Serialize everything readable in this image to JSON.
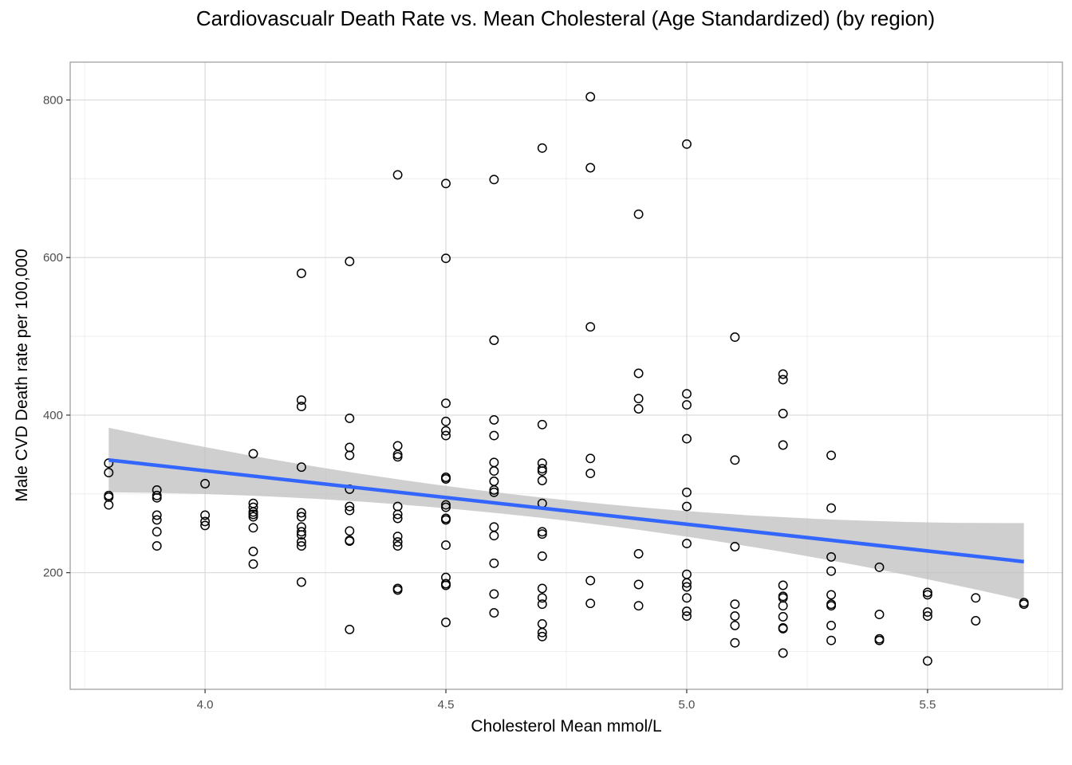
{
  "chart_data": {
    "type": "scatter",
    "title": "Cardiovascualr Death Rate vs. Mean Cholesteral (Age Standardized) (by region)",
    "xlabel": "Cholesterol Mean mmol/L",
    "ylabel": "Male CVD Death rate per 100,000",
    "xlim": [
      3.72,
      5.78
    ],
    "ylim": [
      52,
      848
    ],
    "x_ticks": [
      4.0,
      4.5,
      5.0,
      5.5
    ],
    "x_tick_labels": [
      "4.0",
      "4.5",
      "5.0",
      "5.5"
    ],
    "y_ticks": [
      200,
      400,
      600,
      800
    ],
    "y_tick_labels": [
      "200",
      "400",
      "600",
      "800"
    ],
    "grid": true,
    "legend": "none",
    "colors": {
      "points": "#000000",
      "trend_line": "#3366ff",
      "confidence_band": "#bfbfbf",
      "grid": "#d9d9d9",
      "panel_border": "#999999"
    },
    "points": [
      [
        3.8,
        339
      ],
      [
        3.8,
        327
      ],
      [
        3.8,
        298
      ],
      [
        3.8,
        296
      ],
      [
        3.8,
        286
      ],
      [
        3.9,
        305
      ],
      [
        3.9,
        298
      ],
      [
        3.9,
        295
      ],
      [
        3.9,
        273
      ],
      [
        3.9,
        267
      ],
      [
        3.9,
        252
      ],
      [
        3.9,
        234
      ],
      [
        4.0,
        313
      ],
      [
        4.0,
        273
      ],
      [
        4.0,
        265
      ],
      [
        4.0,
        260
      ],
      [
        4.1,
        351
      ],
      [
        4.1,
        288
      ],
      [
        4.1,
        283
      ],
      [
        4.1,
        277
      ],
      [
        4.1,
        274
      ],
      [
        4.1,
        271
      ],
      [
        4.1,
        257
      ],
      [
        4.1,
        227
      ],
      [
        4.1,
        211
      ],
      [
        4.2,
        580
      ],
      [
        4.2,
        419
      ],
      [
        4.2,
        411
      ],
      [
        4.2,
        334
      ],
      [
        4.2,
        276
      ],
      [
        4.2,
        271
      ],
      [
        4.2,
        258
      ],
      [
        4.2,
        252
      ],
      [
        4.2,
        248
      ],
      [
        4.2,
        239
      ],
      [
        4.2,
        234
      ],
      [
        4.2,
        188
      ],
      [
        4.3,
        595
      ],
      [
        4.3,
        396
      ],
      [
        4.3,
        359
      ],
      [
        4.3,
        349
      ],
      [
        4.3,
        306
      ],
      [
        4.3,
        284
      ],
      [
        4.3,
        279
      ],
      [
        4.3,
        253
      ],
      [
        4.3,
        241
      ],
      [
        4.3,
        240
      ],
      [
        4.3,
        128
      ],
      [
        4.4,
        705
      ],
      [
        4.4,
        361
      ],
      [
        4.4,
        350
      ],
      [
        4.4,
        347
      ],
      [
        4.4,
        284
      ],
      [
        4.4,
        274
      ],
      [
        4.4,
        269
      ],
      [
        4.4,
        246
      ],
      [
        4.4,
        239
      ],
      [
        4.4,
        234
      ],
      [
        4.4,
        180
      ],
      [
        4.4,
        178
      ],
      [
        4.5,
        694
      ],
      [
        4.5,
        599
      ],
      [
        4.5,
        415
      ],
      [
        4.5,
        392
      ],
      [
        4.5,
        380
      ],
      [
        4.5,
        374
      ],
      [
        4.5,
        321
      ],
      [
        4.5,
        319
      ],
      [
        4.5,
        286
      ],
      [
        4.5,
        283
      ],
      [
        4.5,
        269
      ],
      [
        4.5,
        267
      ],
      [
        4.5,
        235
      ],
      [
        4.5,
        194
      ],
      [
        4.5,
        186
      ],
      [
        4.5,
        184
      ],
      [
        4.5,
        137
      ],
      [
        4.6,
        699
      ],
      [
        4.6,
        495
      ],
      [
        4.6,
        394
      ],
      [
        4.6,
        374
      ],
      [
        4.6,
        340
      ],
      [
        4.6,
        329
      ],
      [
        4.6,
        316
      ],
      [
        4.6,
        305
      ],
      [
        4.6,
        302
      ],
      [
        4.6,
        258
      ],
      [
        4.6,
        247
      ],
      [
        4.6,
        212
      ],
      [
        4.6,
        173
      ],
      [
        4.6,
        149
      ],
      [
        4.7,
        739
      ],
      [
        4.7,
        388
      ],
      [
        4.7,
        339
      ],
      [
        4.7,
        332
      ],
      [
        4.7,
        329
      ],
      [
        4.7,
        317
      ],
      [
        4.7,
        288
      ],
      [
        4.7,
        252
      ],
      [
        4.7,
        249
      ],
      [
        4.7,
        221
      ],
      [
        4.7,
        180
      ],
      [
        4.7,
        168
      ],
      [
        4.7,
        160
      ],
      [
        4.7,
        135
      ],
      [
        4.7,
        124
      ],
      [
        4.7,
        119
      ],
      [
        4.8,
        804
      ],
      [
        4.8,
        714
      ],
      [
        4.8,
        512
      ],
      [
        4.8,
        345
      ],
      [
        4.8,
        326
      ],
      [
        4.8,
        190
      ],
      [
        4.8,
        161
      ],
      [
        4.9,
        655
      ],
      [
        4.9,
        453
      ],
      [
        4.9,
        421
      ],
      [
        4.9,
        408
      ],
      [
        4.9,
        224
      ],
      [
        4.9,
        185
      ],
      [
        4.9,
        158
      ],
      [
        5.0,
        744
      ],
      [
        5.0,
        427
      ],
      [
        5.0,
        413
      ],
      [
        5.0,
        370
      ],
      [
        5.0,
        302
      ],
      [
        5.0,
        284
      ],
      [
        5.0,
        237
      ],
      [
        5.0,
        198
      ],
      [
        5.0,
        187
      ],
      [
        5.0,
        182
      ],
      [
        5.0,
        168
      ],
      [
        5.0,
        151
      ],
      [
        5.0,
        145
      ],
      [
        5.1,
        499
      ],
      [
        5.1,
        343
      ],
      [
        5.1,
        233
      ],
      [
        5.1,
        160
      ],
      [
        5.1,
        145
      ],
      [
        5.1,
        133
      ],
      [
        5.1,
        111
      ],
      [
        5.2,
        452
      ],
      [
        5.2,
        445
      ],
      [
        5.2,
        402
      ],
      [
        5.2,
        362
      ],
      [
        5.2,
        184
      ],
      [
        5.2,
        170
      ],
      [
        5.2,
        168
      ],
      [
        5.2,
        158
      ],
      [
        5.2,
        144
      ],
      [
        5.2,
        130
      ],
      [
        5.2,
        129
      ],
      [
        5.2,
        98
      ],
      [
        5.3,
        349
      ],
      [
        5.3,
        282
      ],
      [
        5.3,
        220
      ],
      [
        5.3,
        202
      ],
      [
        5.3,
        172
      ],
      [
        5.3,
        160
      ],
      [
        5.3,
        158
      ],
      [
        5.3,
        133
      ],
      [
        5.3,
        114
      ],
      [
        5.4,
        207
      ],
      [
        5.4,
        147
      ],
      [
        5.4,
        116
      ],
      [
        5.4,
        114
      ],
      [
        5.5,
        175
      ],
      [
        5.5,
        172
      ],
      [
        5.5,
        150
      ],
      [
        5.5,
        145
      ],
      [
        5.5,
        88
      ],
      [
        5.6,
        168
      ],
      [
        5.6,
        139
      ],
      [
        5.7,
        162
      ],
      [
        5.7,
        160
      ]
    ],
    "trend": {
      "method": "linear",
      "x": [
        3.8,
        5.7
      ],
      "y": [
        343,
        214
      ],
      "ci_upper": [
        384,
        263
      ],
      "ci_lower": [
        302,
        165
      ],
      "ci_mid_x": 4.75,
      "ci_mid_upper": 292,
      "ci_mid_lower": 266
    }
  }
}
